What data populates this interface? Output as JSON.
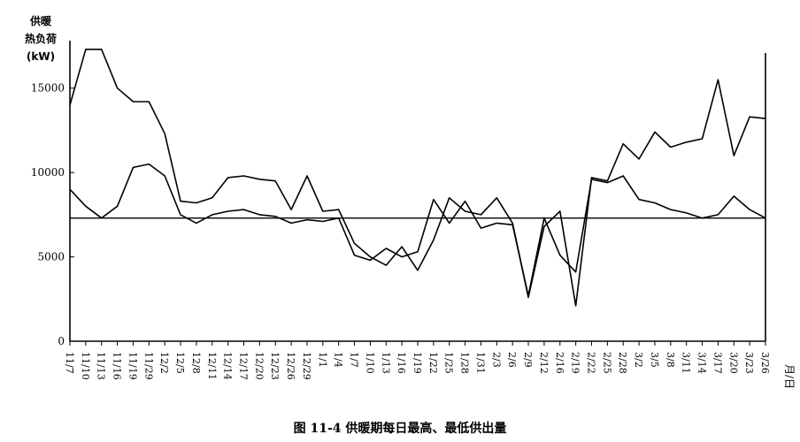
{
  "caption": "图 11-4   供暖期每日最高、最低供出量",
  "chart_data": {
    "type": "line",
    "ylabel_lines": [
      "供暖",
      "热负荷",
      "(kW)"
    ],
    "xlabel": "月/日",
    "ylim": [
      0,
      17500
    ],
    "yticks": [
      0,
      5000,
      10000,
      15000
    ],
    "ytick_labels": [
      "0",
      "5000",
      "10000",
      "15000"
    ],
    "grid": false,
    "categories": [
      "11/7",
      "11/10",
      "11/13",
      "11/16",
      "11/19",
      "11/29",
      "12/2",
      "12/5",
      "12/8",
      "12/11",
      "12/14",
      "12/17",
      "12/20",
      "12/23",
      "12/26",
      "12/29",
      "1/1",
      "1/4",
      "1/7",
      "1/10",
      "1/13",
      "1/16",
      "1/19",
      "1/22",
      "1/25",
      "1/28",
      "1/31",
      "2/3",
      "2/6",
      "2/9",
      "2/12",
      "2/16",
      "2/19",
      "2/22",
      "2/25",
      "2/28",
      "3/2",
      "3/5",
      "3/8",
      "3/11",
      "3/14",
      "3/17",
      "3/20",
      "3/23",
      "3/26"
    ],
    "reference_line": 7300,
    "series": [
      {
        "values": [
          14000,
          17300,
          17300,
          15000,
          14200,
          14200,
          12300,
          8300,
          8200,
          8500,
          9700,
          9800,
          9600,
          9500,
          7800,
          9800,
          7700,
          7800,
          5800,
          5000,
          4500,
          5600,
          4200,
          6000,
          8500,
          7700,
          7500,
          8500,
          7000,
          2600,
          6800,
          7700,
          2100,
          9700,
          9500,
          11700,
          10800,
          12400,
          11500,
          11800,
          12000,
          15500,
          11000,
          13300,
          13200
        ]
      },
      {
        "values": [
          9000,
          8000,
          7300,
          8000,
          10300,
          10500,
          9800,
          7500,
          7000,
          7500,
          7700,
          7800,
          7500,
          7400,
          7000,
          7200,
          7100,
          7300,
          5100,
          4800,
          5500,
          5000,
          5300,
          8400,
          7000,
          8300,
          6700,
          7000,
          6900,
          2700,
          7300,
          5100,
          4100,
          9600,
          9400,
          9800,
          8400,
          8200,
          7800,
          7600,
          7300,
          7500,
          8600,
          7800,
          7300
        ]
      }
    ]
  }
}
